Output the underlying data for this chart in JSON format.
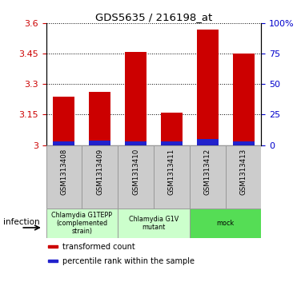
{
  "title": "GDS5635 / 216198_at",
  "samples": [
    "GSM1313408",
    "GSM1313409",
    "GSM1313410",
    "GSM1313411",
    "GSM1313412",
    "GSM1313413"
  ],
  "transformed_counts": [
    3.24,
    3.26,
    3.46,
    3.16,
    3.57,
    3.45
  ],
  "percentile_values": [
    3.018,
    3.022,
    3.018,
    3.018,
    3.03,
    3.018
  ],
  "ylim": [
    3.0,
    3.6
  ],
  "yticks_left": [
    3.0,
    3.15,
    3.3,
    3.45,
    3.6
  ],
  "ytick_labels_left": [
    "3",
    "3.15",
    "3.3",
    "3.45",
    "3.6"
  ],
  "yticks_right": [
    0,
    25,
    50,
    75,
    100
  ],
  "ytick_labels_right": [
    "0",
    "25",
    "50",
    "75",
    "100%"
  ],
  "bar_color": "#cc0000",
  "percentile_color": "#2222cc",
  "bar_width": 0.6,
  "groups": [
    {
      "label": "Chlamydia G1TEPP\n(complemented\nstrain)",
      "start": 0,
      "end": 1,
      "color": "#ccffcc"
    },
    {
      "label": "Chlamydia G1V\nmutant",
      "start": 2,
      "end": 3,
      "color": "#ccffcc"
    },
    {
      "label": "mock",
      "start": 4,
      "end": 5,
      "color": "#55dd55"
    }
  ],
  "infection_label": "infection",
  "legend_items": [
    {
      "color": "#cc0000",
      "label": "transformed count"
    },
    {
      "color": "#2222cc",
      "label": "percentile rank within the sample"
    }
  ],
  "background_color": "#ffffff",
  "axis_label_color_left": "#cc0000",
  "axis_label_color_right": "#0000cc"
}
